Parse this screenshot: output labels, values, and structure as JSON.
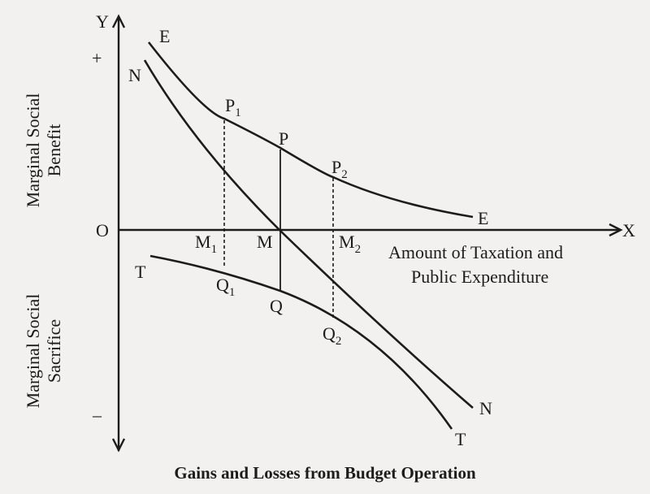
{
  "axes": {
    "y_label": "Y",
    "x_label": "X",
    "origin": "O",
    "plus": "+",
    "minus": "–",
    "x_title_line1": "Amount of Taxation and",
    "x_title_line2": "Public Expenditure",
    "y_upper_line1": "Marginal Social",
    "y_upper_line2": "Benefit",
    "y_lower_line1": "Marginal Social",
    "y_lower_line2": "Sacrifice"
  },
  "curves": {
    "e_top": "E",
    "e_bottom": "E",
    "n_top": "N",
    "n_bottom": "N",
    "t_top": "T",
    "t_bottom": "T"
  },
  "points": {
    "p1": "P",
    "p1_sub": "1",
    "p": "P",
    "p2": "P",
    "p2_sub": "2",
    "m1": "M",
    "m1_sub": "1",
    "m": "M",
    "m2": "M",
    "m2_sub": "2",
    "q1": "Q",
    "q1_sub": "1",
    "q": "Q",
    "q2": "Q",
    "q2_sub": "2"
  },
  "caption": "Gains and Losses from Budget Operation"
}
